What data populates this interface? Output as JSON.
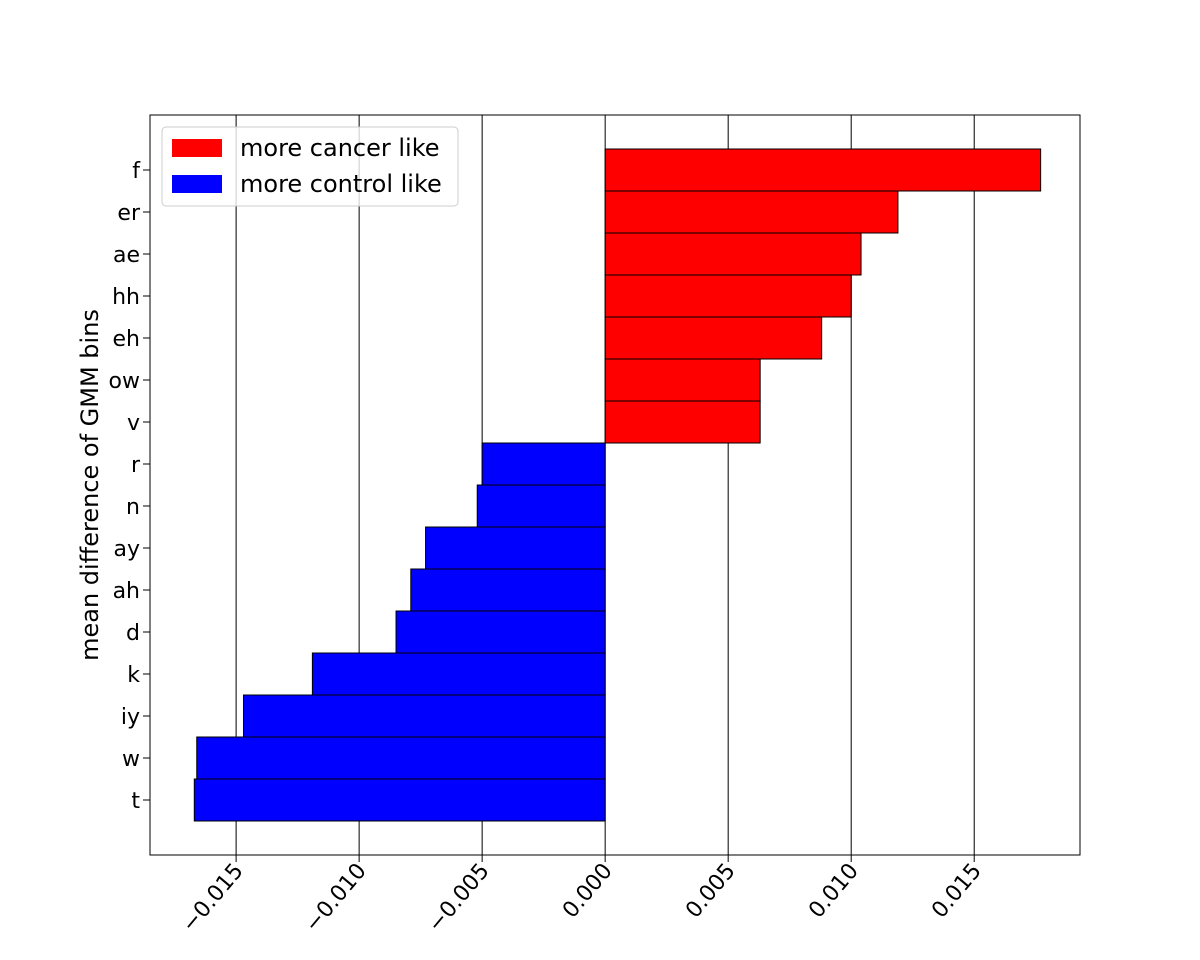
{
  "chart_data": {
    "type": "bar",
    "orientation": "horizontal",
    "title": "",
    "xlabel": "",
    "ylabel": "mean difference of GMM bins",
    "xlim": [
      -0.0185,
      0.0193
    ],
    "x_ticks": [
      -0.015,
      -0.01,
      -0.005,
      0.0,
      0.005,
      0.01,
      0.015
    ],
    "x_tick_labels": [
      "−0.015",
      "−0.010",
      "−0.005",
      "0.000",
      "0.005",
      "0.010",
      "0.015"
    ],
    "grid": "vertical lines at x ticks",
    "legend_position": "upper-left",
    "series": [
      {
        "name": "more cancer like",
        "color": "#ff0000",
        "categories": [
          "f",
          "er",
          "ae",
          "hh",
          "eh",
          "ow",
          "v"
        ],
        "values": [
          0.0177,
          0.0119,
          0.0104,
          0.01,
          0.0088,
          0.0063,
          0.0063
        ]
      },
      {
        "name": "more control like",
        "color": "#0000ff",
        "categories": [
          "r",
          "n",
          "ay",
          "ah",
          "d",
          "k",
          "iy",
          "w",
          "t"
        ],
        "values": [
          -0.005,
          -0.0052,
          -0.0073,
          -0.0079,
          -0.0085,
          -0.0119,
          -0.0147,
          -0.0166,
          -0.0167
        ]
      }
    ]
  }
}
